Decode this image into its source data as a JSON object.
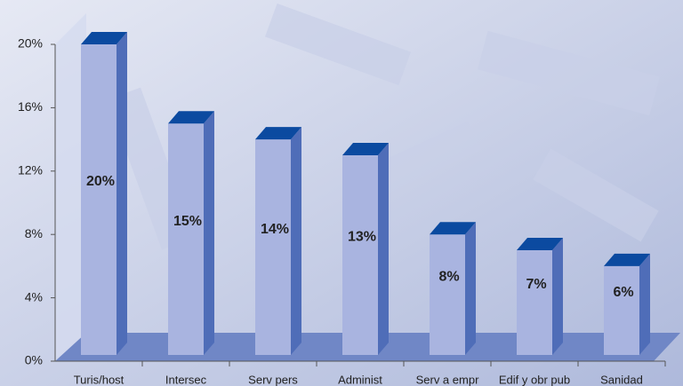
{
  "chart_data": {
    "type": "bar3d",
    "categories": [
      "Turis/host",
      "Intersec",
      "Serv pers",
      "Administ",
      "Serv a empr",
      "Edif y obr pub",
      "Sanidad"
    ],
    "values": [
      20,
      15,
      14,
      13,
      8,
      7,
      6
    ],
    "value_labels": [
      "20%",
      "15%",
      "14%",
      "13%",
      "8%",
      "7%",
      "6%"
    ],
    "color": "#a9b4e0",
    "ylim": [
      0,
      20
    ],
    "yticks": [
      {
        "value": 0,
        "label": "0%"
      },
      {
        "value": 4,
        "label": "4%"
      },
      {
        "value": 8,
        "label": "8%"
      },
      {
        "value": 12,
        "label": "12%"
      },
      {
        "value": 16,
        "label": "16%"
      },
      {
        "value": 20,
        "label": "20%"
      }
    ]
  }
}
